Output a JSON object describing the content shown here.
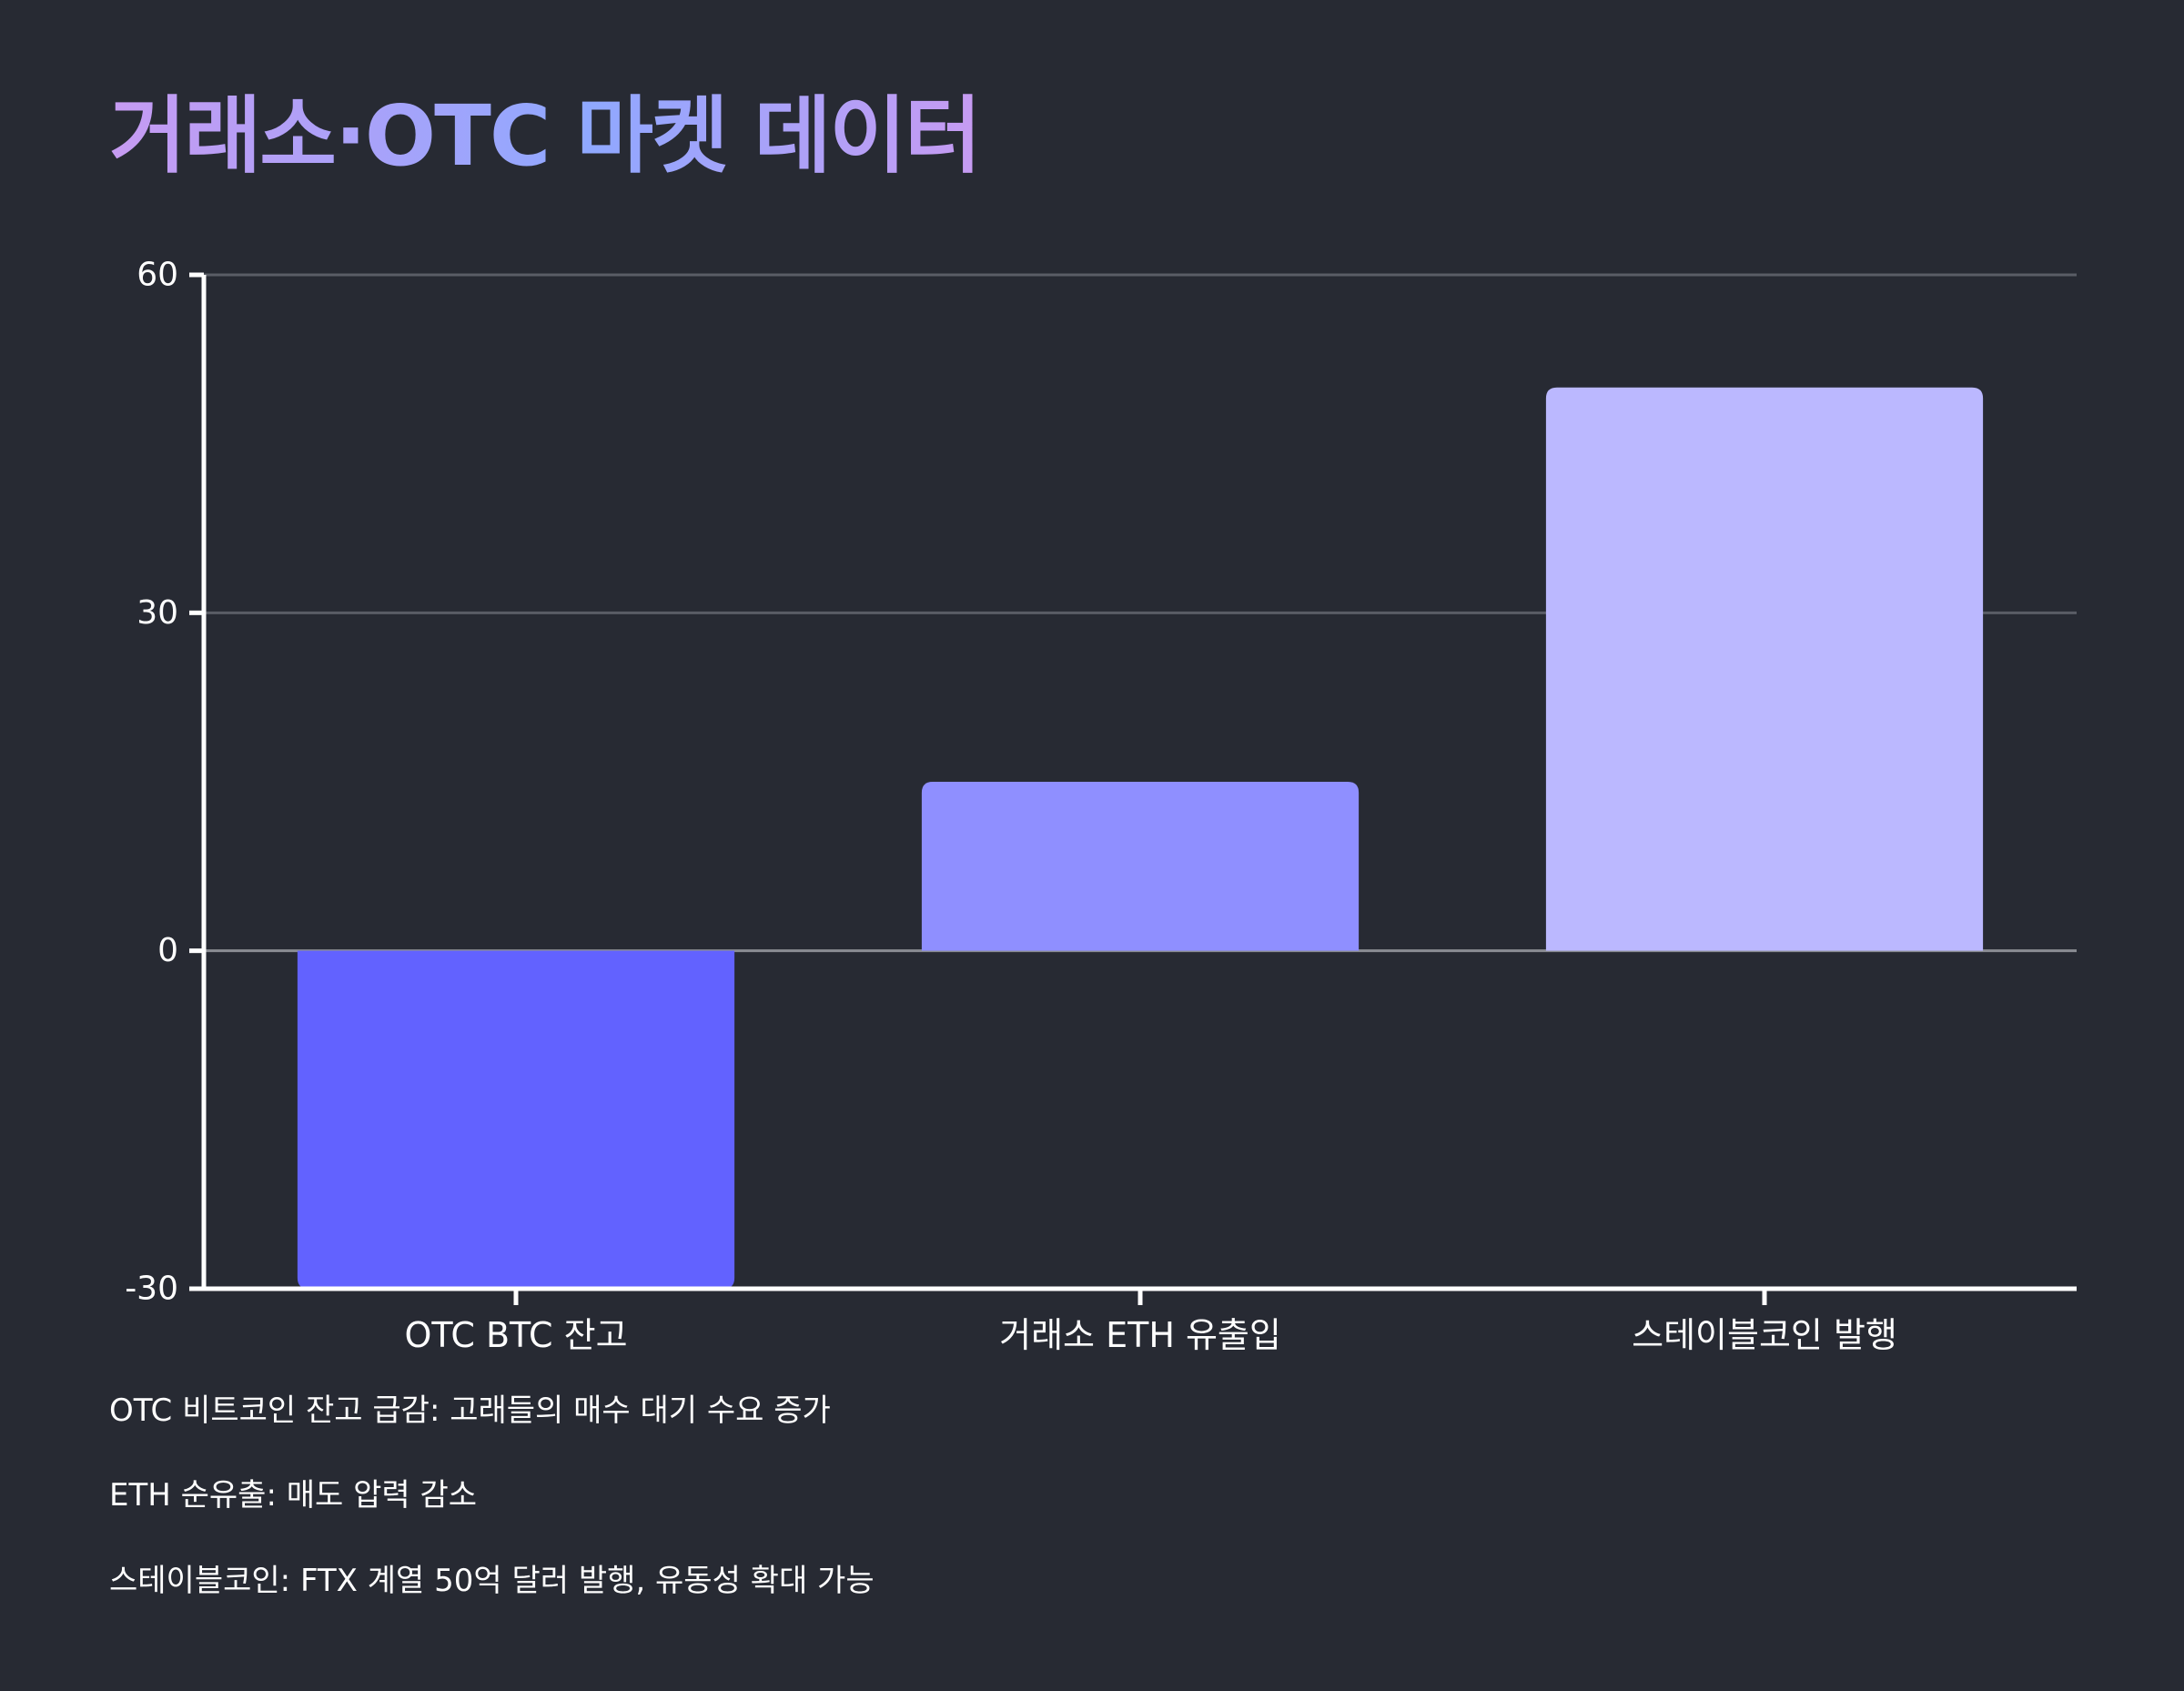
{
  "chart_data": {
    "type": "bar",
    "title": "거래소·OTC 마켓 데이터",
    "xlabel": "",
    "ylabel": "",
    "categories": [
      "OTC BTC 잔고",
      "거래소 ETH 유출입",
      "스테이블코인 발행"
    ],
    "values": [
      -30,
      15,
      50
    ],
    "ylim": [
      -30,
      60
    ],
    "yticks": [
      -30,
      0,
      30,
      60
    ],
    "ytick_labels": [
      "-30",
      "0",
      "30",
      "60"
    ],
    "grid": true,
    "legend": "none",
    "colors": [
      "#6262ff",
      "#8f8fff",
      "#bbb8ff"
    ]
  },
  "notes": [
    "OTC 비트코인 잔고 급감: 고래들의 매수 대기 수요 증가",
    "ETH 순유출: 매도 압력 감소",
    "스테이블코인: FTX 계열 50억 달러 발행, 유동성 확대 가능"
  ]
}
